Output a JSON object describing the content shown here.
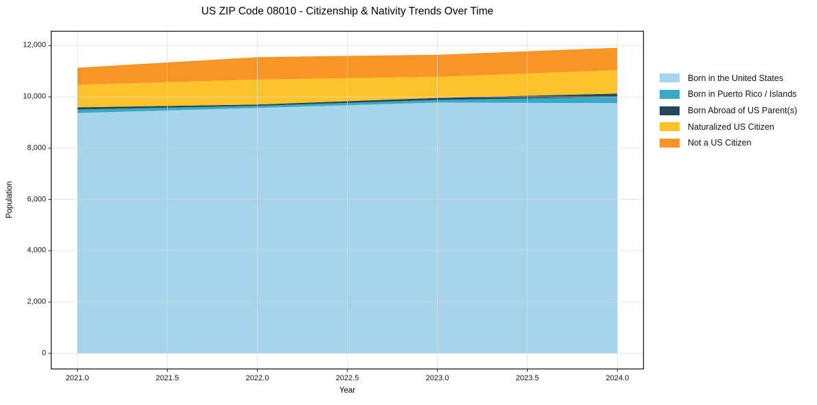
{
  "chart_data": {
    "type": "area",
    "stacked": true,
    "title": "US ZIP Code 08010 - Citizenship & Nativity Trends Over Time",
    "xlabel": "Year",
    "ylabel": "Population",
    "x": [
      2021,
      2022,
      2023,
      2024
    ],
    "series": [
      {
        "name": "Born in the United States",
        "color": "#a6d4ea",
        "values": [
          9370,
          9570,
          9780,
          9755
        ]
      },
      {
        "name": "Born in Puerto Rico / Islands",
        "color": "#39a9c6",
        "values": [
          135,
          80,
          100,
          240
        ]
      },
      {
        "name": "Born Abroad of US Parent(s)",
        "color": "#23485c",
        "values": [
          90,
          55,
          80,
          135
        ]
      },
      {
        "name": "Naturalized US Citizen",
        "color": "#fdc32b",
        "values": [
          875,
          970,
          820,
          910
        ]
      },
      {
        "name": "Not a US Citizen",
        "color": "#f79527",
        "values": [
          665,
          875,
          865,
          875
        ]
      }
    ],
    "totals": [
      11135,
      11550,
      11645,
      11915
    ],
    "x_ticks": [
      2021.0,
      2021.5,
      2022.0,
      2022.5,
      2023.0,
      2023.5,
      2024.0
    ],
    "x_tick_labels": [
      "2021.0",
      "2021.5",
      "2022.0",
      "2022.5",
      "2023.0",
      "2023.5",
      "2024.0"
    ],
    "y_ticks": [
      0,
      2000,
      4000,
      6000,
      8000,
      10000,
      12000
    ],
    "y_tick_labels": [
      "0",
      "2,000",
      "4,000",
      "6,000",
      "8,000",
      "10,000",
      "12,000"
    ],
    "xlim": [
      2020.855,
      2024.145
    ],
    "ylim": [
      -610,
      12560
    ],
    "grid": true,
    "legend_position": "outside-right-top",
    "colors": {
      "grid": "#dcdcdc",
      "frame": "#1a1a1a",
      "background": "#ffffff",
      "text": "#111111"
    }
  }
}
